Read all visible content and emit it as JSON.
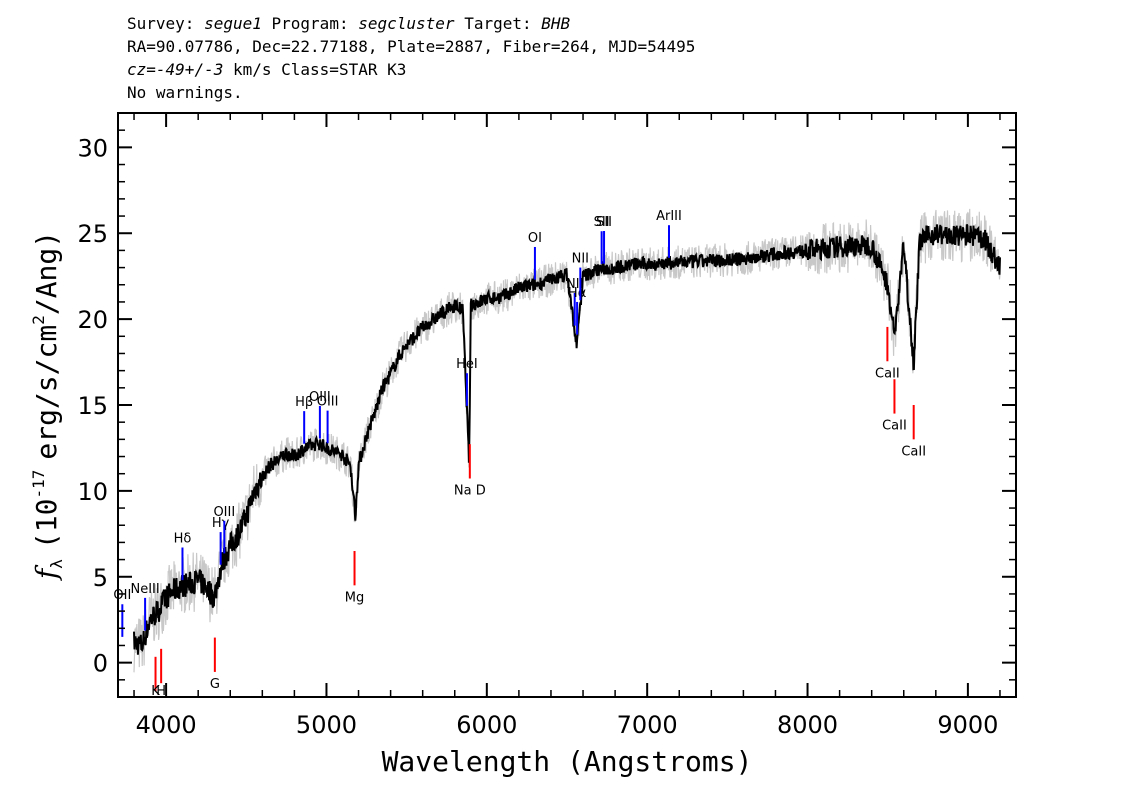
{
  "header": {
    "survey_label": "Survey:",
    "survey": "segue1",
    "program_label": "Program:",
    "program": "segcluster",
    "target_label": "Target:",
    "target": "BHB",
    "line2": "RA=90.07786, Dec=22.77188, Plate=2887, Fiber=264, MJD=54495",
    "cz_label": "cz=",
    "cz_value": "-49+/-3",
    "cz_rest": " km/s Class=STAR K3",
    "line4": "No warnings."
  },
  "chart_data": {
    "type": "line",
    "xlabel": "Wavelength (Angstroms)",
    "ylabel_parts": {
      "f": "f",
      "sub": "λ",
      "main": "(10",
      "exp": "-17",
      "rest": "erg/s/cm",
      "exp2": "2",
      "tail": "/Ang)"
    },
    "xlim": [
      3700,
      9300
    ],
    "ylim": [
      -2,
      32
    ],
    "xticks": [
      4000,
      5000,
      6000,
      7000,
      8000,
      9000
    ],
    "yticks": [
      0,
      5,
      10,
      15,
      20,
      25,
      30
    ],
    "colors": {
      "flux": "#000000",
      "error": "#c8c8c8",
      "emission": "#0000ff",
      "absorption": "#ff0000"
    },
    "series": [
      {
        "values_kind": "spectrum",
        "x": [
          3800,
          3850,
          3900,
          3950,
          4000,
          4050,
          4100,
          4150,
          4200,
          4250,
          4300,
          4350,
          4400,
          4450,
          4500,
          4550,
          4600,
          4650,
          4700,
          4750,
          4800,
          4850,
          4900,
          4950,
          5000,
          5050,
          5100,
          5150,
          5180,
          5200,
          5250,
          5300,
          5350,
          5400,
          5450,
          5500,
          5600,
          5700,
          5800,
          5850,
          5890,
          5900,
          5950,
          6000,
          6100,
          6200,
          6300,
          6400,
          6500,
          6560,
          6600,
          6700,
          6800,
          6900,
          7000,
          7200,
          7400,
          7600,
          7800,
          8000,
          8200,
          8400,
          8500,
          8542,
          8600,
          8662,
          8700,
          8800,
          8900,
          9000,
          9100,
          9200
        ],
        "y": [
          1.2,
          1.0,
          2.5,
          3.0,
          3.8,
          4.2,
          4.5,
          4.6,
          4.8,
          4.4,
          3.8,
          5.8,
          6.8,
          7.5,
          8.5,
          10.0,
          10.8,
          11.5,
          11.8,
          12.2,
          12.0,
          12.4,
          12.6,
          12.8,
          12.5,
          12.3,
          12.1,
          11.5,
          8.5,
          11.5,
          13.2,
          14.5,
          16.0,
          16.8,
          17.8,
          18.5,
          19.5,
          20.2,
          20.8,
          20.5,
          11.5,
          20.8,
          21.0,
          21.2,
          21.3,
          21.8,
          22.0,
          22.3,
          22.6,
          18.5,
          22.5,
          22.9,
          23.0,
          23.2,
          23.2,
          23.3,
          23.4,
          23.5,
          23.8,
          24.0,
          24.2,
          24.3,
          22.0,
          19.0,
          24.3,
          17.5,
          24.6,
          25.0,
          24.8,
          24.9,
          24.7,
          23.0
        ]
      }
    ],
    "lines_emission": [
      {
        "label": "OII",
        "wl": 3727
      },
      {
        "label": "NeIII",
        "wl": 3869
      },
      {
        "label": "Hδ",
        "wl": 4102
      },
      {
        "label": "Hγ",
        "wl": 4340
      },
      {
        "label": "OIII",
        "wl": 4363
      },
      {
        "label": "Hβ",
        "wl": 4861
      },
      {
        "label": "OIII",
        "wl": 4959
      },
      {
        "label": "OIII",
        "wl": 5007
      },
      {
        "label": "HeI",
        "wl": 5876
      },
      {
        "label": "OI",
        "wl": 6300
      },
      {
        "label": "NII",
        "wl": 6548
      },
      {
        "label": "Hα",
        "wl": 6563
      },
      {
        "label": "NII",
        "wl": 6583
      },
      {
        "label": "SII",
        "wl": 6716
      },
      {
        "label": "SII",
        "wl": 6731
      },
      {
        "label": "ArIII",
        "wl": 7136
      }
    ],
    "lines_absorption": [
      {
        "label": "K",
        "wl": 3934
      },
      {
        "label": "H",
        "wl": 3969
      },
      {
        "label": "G",
        "wl": 4304
      },
      {
        "label": "Mg",
        "wl": 5175
      },
      {
        "label": "Na D",
        "wl": 5894
      },
      {
        "label": "CaII",
        "wl": 8498
      },
      {
        "label": "CaII",
        "wl": 8542
      },
      {
        "label": "CaII",
        "wl": 8662
      }
    ],
    "grid": false,
    "legend": "none"
  }
}
